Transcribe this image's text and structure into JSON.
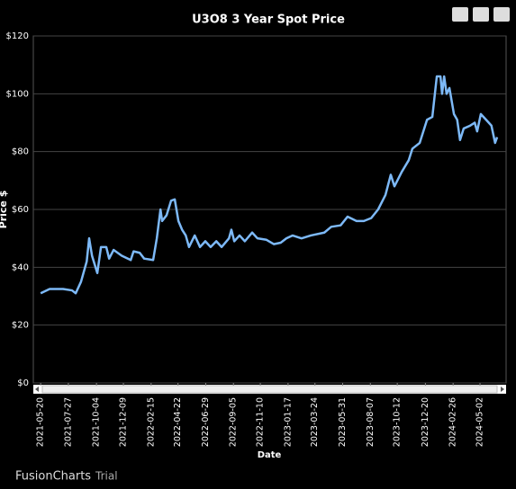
{
  "chart_data": {
    "type": "line",
    "title": "U3O8 3 Year Spot Price",
    "x_label": "Date",
    "y_label": "Price $",
    "x": [
      "2021-05-20",
      "2021-06-11",
      "2021-07-14",
      "2021-08-05",
      "2021-08-14",
      "2021-08-27",
      "2021-09-10",
      "2021-09-16",
      "2021-09-23",
      "2021-10-06",
      "2021-10-15",
      "2021-10-28",
      "2021-11-04",
      "2021-11-15",
      "2021-12-05",
      "2021-12-27",
      "2022-01-03",
      "2022-01-18",
      "2022-01-29",
      "2022-02-20",
      "2022-03-01",
      "2022-03-10",
      "2022-03-14",
      "2022-03-25",
      "2022-04-05",
      "2022-04-14",
      "2022-04-23",
      "2022-05-02",
      "2022-05-11",
      "2022-05-19",
      "2022-06-02",
      "2022-06-15",
      "2022-06-28",
      "2022-07-11",
      "2022-07-25",
      "2022-08-07",
      "2022-08-25",
      "2022-08-31",
      "2022-09-07",
      "2022-09-20",
      "2022-10-03",
      "2022-10-21",
      "2022-11-03",
      "2022-11-25",
      "2022-12-13",
      "2022-12-30",
      "2023-01-13",
      "2023-01-28",
      "2023-02-19",
      "2023-03-14",
      "2023-04-16",
      "2023-05-03",
      "2023-05-26",
      "2023-06-12",
      "2023-07-04",
      "2023-07-22",
      "2023-08-09",
      "2023-08-26",
      "2023-09-13",
      "2023-09-26",
      "2023-10-05",
      "2023-10-23",
      "2023-11-09",
      "2023-11-18",
      "2023-12-06",
      "2023-12-24",
      "2024-01-06",
      "2024-01-17",
      "2024-01-26",
      "2024-01-30",
      "2024-02-04",
      "2024-02-10",
      "2024-02-17",
      "2024-02-28",
      "2024-03-07",
      "2024-03-14",
      "2024-03-23",
      "2024-04-08",
      "2024-04-19",
      "2024-04-25",
      "2024-05-04",
      "2024-05-17",
      "2024-05-30",
      "2024-06-08",
      "2024-06-13"
    ],
    "series": [
      {
        "name": "Price",
        "color": "#7db9f7",
        "values": [
          31,
          32.5,
          32.5,
          32,
          31,
          35,
          42,
          50,
          44,
          38,
          47,
          47,
          43,
          46,
          44,
          42.5,
          45.5,
          45,
          43,
          42.5,
          50,
          60,
          56,
          58,
          63,
          63.5,
          56,
          53,
          51,
          47,
          51,
          47,
          49,
          47,
          49,
          47,
          50,
          53,
          49,
          51,
          49,
          52,
          50,
          49.5,
          48,
          48.5,
          50,
          51,
          50,
          51,
          52,
          54,
          54.5,
          57.5,
          56,
          56,
          57,
          60,
          65,
          72,
          68,
          73,
          77,
          81,
          83,
          91,
          92,
          106,
          106,
          100,
          106,
          100,
          102,
          93,
          91,
          84,
          88,
          89,
          90,
          87,
          93,
          91,
          89,
          83,
          85
        ]
      }
    ],
    "xlim": [
      "2021-05-02",
      "2024-07-05"
    ],
    "xticks": [
      "2021-05-20",
      "2021-07-27",
      "2021-10-04",
      "2021-12-09",
      "2022-02-15",
      "2022-04-22",
      "2022-06-29",
      "2022-09-05",
      "2022-11-10",
      "2023-01-17",
      "2023-03-24",
      "2023-05-31",
      "2023-08-07",
      "2023-10-12",
      "2023-12-20",
      "2024-02-26",
      "2024-05-02"
    ],
    "ylim": [
      0,
      120
    ],
    "yticks": [
      {
        "value": 0,
        "label": "$0"
      },
      {
        "value": 20,
        "label": "$20"
      },
      {
        "value": 40,
        "label": "$40"
      },
      {
        "value": 60,
        "label": "$60"
      },
      {
        "value": 80,
        "label": "$80"
      },
      {
        "value": 100,
        "label": "$100"
      },
      {
        "value": 120,
        "label": "$120"
      }
    ],
    "grid": true
  },
  "credit": {
    "brand": "FusionCharts",
    "suffix": "Trial"
  }
}
